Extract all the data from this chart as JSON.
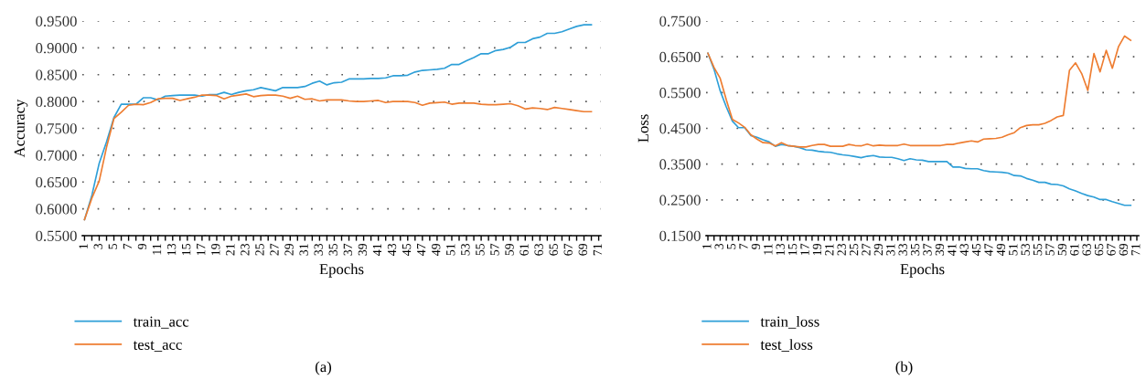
{
  "chart_data": [
    {
      "type": "line",
      "xlabel": "Epochs",
      "ylabel": "Accuracy",
      "annotations": [
        "(a)"
      ],
      "grid": "y",
      "legend": "bottom",
      "line_style": "solid",
      "marker": "none",
      "categories": [
        "1",
        null,
        "3",
        null,
        "5",
        null,
        "7",
        null,
        "9",
        null,
        "11",
        null,
        "13",
        null,
        "15",
        null,
        "17",
        null,
        "19",
        null,
        "21",
        null,
        "23",
        null,
        "25",
        null,
        "27",
        null,
        "29",
        null,
        "31",
        null,
        "33",
        null,
        "35",
        null,
        "37",
        null,
        "39",
        null,
        "41",
        null,
        "43",
        null,
        "45",
        null,
        "47",
        null,
        "49",
        null,
        "51",
        null,
        "53",
        null,
        "55",
        null,
        "57",
        null,
        "59",
        null,
        "61",
        null,
        "63",
        null,
        "65",
        null,
        "67",
        null,
        "69",
        null,
        "71"
      ],
      "ylim": [
        0.55,
        0.95
      ],
      "yticks": [
        {
          "value": 0.55,
          "label": "0.5500"
        },
        {
          "value": 0.6,
          "label": "0.6000"
        },
        {
          "value": 0.65,
          "label": "0.6500"
        },
        {
          "value": 0.7,
          "label": "0.7000"
        },
        {
          "value": 0.75,
          "label": "0.7500"
        },
        {
          "value": 0.8,
          "label": "0.8000"
        },
        {
          "value": 0.85,
          "label": "0.8500"
        },
        {
          "value": 0.9,
          "label": "0.9000"
        },
        {
          "value": 0.95,
          "label": "0.9500"
        }
      ],
      "series": [
        {
          "name": "train_acc",
          "color": "#2e9fd8",
          "values": [
            0.58,
            0.625,
            0.685,
            0.725,
            0.77,
            0.795,
            0.795,
            0.795,
            0.807,
            0.807,
            0.803,
            0.81,
            0.811,
            0.812,
            0.812,
            0.812,
            0.81,
            0.813,
            0.813,
            0.817,
            0.813,
            0.817,
            0.82,
            0.822,
            0.826,
            0.823,
            0.82,
            0.826,
            0.826,
            0.826,
            0.828,
            0.834,
            0.838,
            0.831,
            0.835,
            0.836,
            0.842,
            0.842,
            0.842,
            0.843,
            0.843,
            0.844,
            0.848,
            0.848,
            0.849,
            0.855,
            0.858,
            0.859,
            0.86,
            0.862,
            0.869,
            0.869,
            0.876,
            0.882,
            0.889,
            0.889,
            0.895,
            0.897,
            0.901,
            0.91,
            0.91,
            0.917,
            0.92,
            0.927,
            0.927,
            0.93,
            0.935,
            0.94,
            0.943,
            0.943,
            null
          ]
        },
        {
          "name": "test_acc",
          "color": "#ee7d31",
          "values": [
            0.58,
            0.62,
            0.652,
            0.715,
            0.768,
            0.78,
            0.793,
            0.795,
            0.794,
            0.798,
            0.805,
            0.806,
            0.806,
            0.802,
            0.805,
            0.808,
            0.812,
            0.812,
            0.811,
            0.805,
            0.81,
            0.812,
            0.814,
            0.809,
            0.811,
            0.812,
            0.812,
            0.81,
            0.806,
            0.81,
            0.804,
            0.805,
            0.801,
            0.803,
            0.803,
            0.803,
            0.801,
            0.8,
            0.8,
            0.801,
            0.802,
            0.798,
            0.8,
            0.8,
            0.8,
            0.798,
            0.793,
            0.797,
            0.798,
            0.799,
            0.795,
            0.797,
            0.797,
            0.797,
            0.795,
            0.794,
            0.794,
            0.795,
            0.796,
            0.792,
            0.786,
            0.788,
            0.787,
            0.785,
            0.789,
            0.787,
            0.785,
            0.783,
            0.781,
            0.781,
            null
          ]
        }
      ]
    },
    {
      "type": "line",
      "xlabel": "Epochs",
      "ylabel": "Loss",
      "annotations": [
        "(b)"
      ],
      "grid": "y",
      "legend": "bottom",
      "line_style": "solid",
      "marker": "none",
      "categories": [
        "1",
        null,
        "3",
        null,
        "5",
        null,
        "7",
        null,
        "9",
        null,
        "11",
        null,
        "13",
        null,
        "15",
        null,
        "17",
        null,
        "19",
        null,
        "21",
        null,
        "23",
        null,
        "25",
        null,
        "27",
        null,
        "29",
        null,
        "31",
        null,
        "33",
        null,
        "35",
        null,
        "37",
        null,
        "39",
        null,
        "41",
        null,
        "43",
        null,
        "45",
        null,
        "47",
        null,
        "49",
        null,
        "51",
        null,
        "53",
        null,
        "55",
        null,
        "57",
        null,
        "59",
        null,
        "61",
        null,
        "63",
        null,
        "65",
        null,
        "67",
        null,
        "69",
        null,
        "71"
      ],
      "ylim": [
        0.15,
        0.75
      ],
      "yticks": [
        {
          "value": 0.15,
          "label": "0.1500"
        },
        {
          "value": 0.25,
          "label": "0.2500"
        },
        {
          "value": 0.35,
          "label": "0.3500"
        },
        {
          "value": 0.45,
          "label": "0.4500"
        },
        {
          "value": 0.55,
          "label": "0.5500"
        },
        {
          "value": 0.65,
          "label": "0.6500"
        },
        {
          "value": 0.75,
          "label": "0.7500"
        }
      ],
      "series": [
        {
          "name": "train_loss",
          "color": "#2e9fd8",
          "values": [
            0.66,
            0.615,
            0.555,
            0.51,
            0.47,
            0.452,
            0.452,
            0.43,
            0.425,
            0.418,
            0.412,
            0.4,
            0.405,
            0.402,
            0.4,
            0.396,
            0.39,
            0.389,
            0.386,
            0.384,
            0.383,
            0.379,
            0.376,
            0.374,
            0.371,
            0.368,
            0.372,
            0.374,
            0.37,
            0.369,
            0.369,
            0.365,
            0.36,
            0.365,
            0.362,
            0.361,
            0.357,
            0.357,
            0.357,
            0.357,
            0.342,
            0.342,
            0.338,
            0.337,
            0.337,
            0.332,
            0.329,
            0.328,
            0.327,
            0.325,
            0.318,
            0.317,
            0.31,
            0.305,
            0.299,
            0.299,
            0.294,
            0.293,
            0.289,
            0.281,
            0.275,
            0.268,
            0.262,
            0.258,
            0.251,
            0.251,
            0.245,
            0.24,
            0.235,
            0.235,
            null
          ]
        },
        {
          "name": "test_loss",
          "color": "#ee7d31",
          "values": [
            0.66,
            0.62,
            0.59,
            0.53,
            0.475,
            0.465,
            0.453,
            0.432,
            0.42,
            0.41,
            0.409,
            0.401,
            0.41,
            0.402,
            0.4,
            0.398,
            0.398,
            0.402,
            0.405,
            0.405,
            0.4,
            0.4,
            0.4,
            0.405,
            0.402,
            0.401,
            0.406,
            0.401,
            0.403,
            0.402,
            0.402,
            0.402,
            0.406,
            0.402,
            0.402,
            0.402,
            0.402,
            0.402,
            0.402,
            0.405,
            0.405,
            0.409,
            0.412,
            0.415,
            0.412,
            0.42,
            0.421,
            0.422,
            0.425,
            0.432,
            0.438,
            0.452,
            0.458,
            0.46,
            0.46,
            0.464,
            0.472,
            0.482,
            0.486,
            0.612,
            0.633,
            0.603,
            0.556,
            0.659,
            0.608,
            0.668,
            0.618,
            0.678,
            0.708,
            0.696,
            null
          ]
        }
      ]
    }
  ]
}
